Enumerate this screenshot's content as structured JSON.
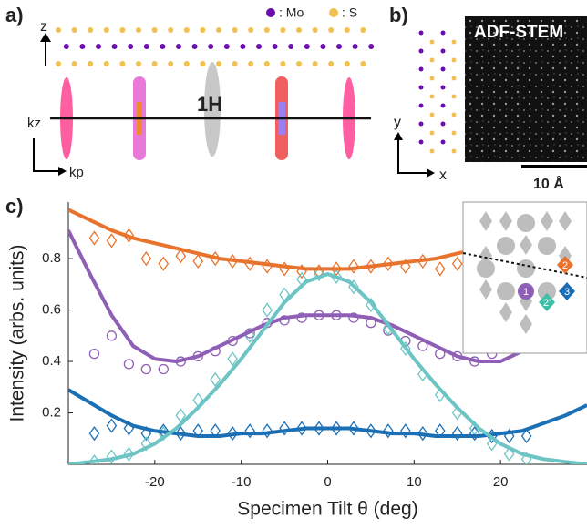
{
  "panels": {
    "a": {
      "label": "a)",
      "legend_mo": ": Mo",
      "legend_s": ": S",
      "z": "z",
      "kz": "kz",
      "kp": "kp",
      "phase": "1H"
    },
    "b": {
      "label": "b)",
      "image_title": "ADF-STEM",
      "scale": "10 Å",
      "y": "y",
      "x": "x"
    },
    "c": {
      "label": "c)",
      "inset_labels": [
        "1",
        "2",
        "2'",
        "3"
      ]
    }
  },
  "chart_data": {
    "type": "line",
    "x_label": "Specimen Tilt θ (deg)",
    "y_label": "Intensity (arbs. units)",
    "xlim": [
      -30,
      30
    ],
    "ylim": [
      0,
      1.02
    ],
    "xticks": [
      -20,
      -10,
      0,
      10,
      20
    ],
    "yticks": [
      0.2,
      0.4,
      0.6,
      0.8
    ],
    "series": [
      {
        "color": "#e8732c",
        "style": "diamond",
        "x": [
          -27,
          -25,
          -23,
          -21,
          -19,
          -17,
          -15,
          -13,
          -11,
          -9,
          -7,
          -5,
          -3,
          -1,
          1,
          3,
          5,
          7,
          9,
          11,
          13,
          15,
          17,
          19,
          21,
          23
        ],
        "values": [
          0.88,
          0.87,
          0.89,
          0.8,
          0.78,
          0.81,
          0.79,
          0.8,
          0.79,
          0.78,
          0.77,
          0.76,
          0.75,
          0.75,
          0.76,
          0.77,
          0.77,
          0.78,
          0.77,
          0.79,
          0.76,
          0.78,
          0.77,
          0.78,
          0.79,
          0.8
        ]
      },
      {
        "color": "#8e5fb5",
        "style": "circle",
        "x": [
          -27,
          -25,
          -23,
          -21,
          -19,
          -17,
          -15,
          -13,
          -11,
          -9,
          -7,
          -5,
          -3,
          -1,
          1,
          3,
          5,
          7,
          9,
          11,
          13,
          15,
          17,
          19,
          21,
          23
        ],
        "values": [
          0.43,
          0.5,
          0.39,
          0.37,
          0.37,
          0.4,
          0.42,
          0.44,
          0.48,
          0.51,
          0.55,
          0.56,
          0.57,
          0.58,
          0.58,
          0.57,
          0.55,
          0.52,
          0.48,
          0.46,
          0.43,
          0.42,
          0.4,
          0.43,
          0.47,
          0.49
        ]
      },
      {
        "color": "#1a6fb5",
        "style": "diamond",
        "x": [
          -27,
          -25,
          -23,
          -21,
          -19,
          -17,
          -15,
          -13,
          -11,
          -9,
          -7,
          -5,
          -3,
          -1,
          1,
          3,
          5,
          7,
          9,
          11,
          13,
          15,
          17,
          19,
          21,
          23
        ],
        "values": [
          0.12,
          0.15,
          0.14,
          0.12,
          0.13,
          0.12,
          0.13,
          0.13,
          0.12,
          0.13,
          0.13,
          0.14,
          0.14,
          0.14,
          0.14,
          0.14,
          0.13,
          0.13,
          0.13,
          0.12,
          0.13,
          0.12,
          0.12,
          0.11,
          0.11,
          0.11
        ]
      },
      {
        "color": "#6cc5c4",
        "style": "diamond",
        "x": [
          -27,
          -25,
          -23,
          -21,
          -19,
          -17,
          -15,
          -13,
          -11,
          -9,
          -7,
          -5,
          -3,
          -1,
          1,
          3,
          5,
          7,
          9,
          11,
          13,
          15,
          17,
          19,
          21,
          23
        ],
        "values": [
          0.01,
          0.03,
          0.04,
          0.08,
          0.12,
          0.19,
          0.25,
          0.33,
          0.41,
          0.5,
          0.6,
          0.66,
          0.72,
          0.74,
          0.73,
          0.69,
          0.62,
          0.53,
          0.45,
          0.35,
          0.27,
          0.2,
          0.14,
          0.08,
          0.04,
          0.02
        ]
      },
      {
        "color": "#e8732c",
        "style": "line",
        "x": [
          -30,
          -27.5,
          -25,
          -22.5,
          -20,
          -17.5,
          -15,
          -12.5,
          -10,
          -7.5,
          -5,
          -2.5,
          0,
          2.5,
          5,
          7.5,
          10,
          12.5,
          15,
          17.5,
          20,
          22.5,
          25,
          27.5,
          30
        ],
        "values": [
          0.99,
          0.95,
          0.91,
          0.88,
          0.86,
          0.84,
          0.82,
          0.8,
          0.79,
          0.78,
          0.77,
          0.76,
          0.76,
          0.76,
          0.77,
          0.78,
          0.79,
          0.8,
          0.82,
          0.84,
          0.86,
          0.88,
          0.91,
          0.95,
          0.99
        ]
      },
      {
        "color": "#8e5fb5",
        "style": "line",
        "x": [
          -30,
          -27.5,
          -25,
          -22.5,
          -20,
          -17.5,
          -15,
          -12.5,
          -10,
          -7.5,
          -5,
          -2.5,
          0,
          2.5,
          5,
          7.5,
          10,
          12.5,
          15,
          17.5,
          20,
          22.5,
          25,
          27.5,
          30
        ],
        "values": [
          0.91,
          0.74,
          0.58,
          0.46,
          0.41,
          0.4,
          0.42,
          0.46,
          0.5,
          0.54,
          0.57,
          0.58,
          0.58,
          0.58,
          0.57,
          0.54,
          0.5,
          0.46,
          0.42,
          0.4,
          0.4,
          0.44,
          0.5,
          null,
          null
        ]
      },
      {
        "color": "#1a6fb5",
        "style": "line",
        "x": [
          -30,
          -27.5,
          -25,
          -22.5,
          -20,
          -17.5,
          -15,
          -12.5,
          -10,
          -7.5,
          -5,
          -2.5,
          0,
          2.5,
          5,
          7.5,
          10,
          12.5,
          15,
          17.5,
          20,
          22.5,
          25,
          27.5,
          30
        ],
        "values": [
          0.29,
          0.24,
          0.19,
          0.15,
          0.13,
          0.12,
          0.11,
          0.11,
          0.12,
          0.12,
          0.13,
          0.14,
          0.14,
          0.14,
          0.13,
          0.12,
          0.12,
          0.11,
          0.11,
          0.11,
          0.12,
          0.13,
          0.16,
          0.19,
          0.23
        ]
      },
      {
        "color": "#6cc5c4",
        "style": "line",
        "x": [
          -30,
          -27.5,
          -25,
          -22.5,
          -20,
          -17.5,
          -15,
          -12.5,
          -10,
          -7.5,
          -5,
          -2.5,
          0,
          2.5,
          5,
          7.5,
          10,
          12.5,
          15,
          17.5,
          20,
          22.5,
          25,
          27.5,
          30
        ],
        "values": [
          0,
          0.01,
          0.02,
          0.04,
          0.08,
          0.14,
          0.22,
          0.31,
          0.41,
          0.52,
          0.63,
          0.71,
          0.74,
          0.71,
          0.63,
          0.52,
          0.41,
          0.31,
          0.22,
          0.14,
          0.08,
          0.04,
          0.02,
          0.01,
          0
        ]
      }
    ]
  }
}
